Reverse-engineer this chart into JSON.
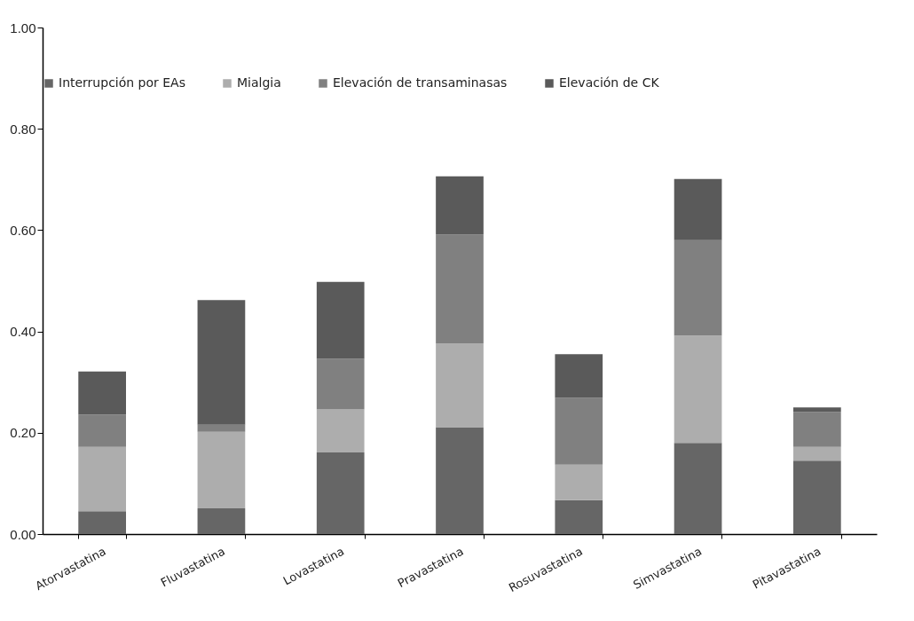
{
  "chart_data": {
    "type": "bar",
    "stacked": true,
    "categories": [
      "Atorvastatina",
      "Fluvastatina",
      "Lovastatina",
      "Pravastatina",
      "Rosuvastatina",
      "Simvastatina",
      "Pitavastatina"
    ],
    "series": [
      {
        "name": "Interrupción por EAs",
        "color": "#666666",
        "values": [
          0.045,
          0.051,
          0.161,
          0.211,
          0.067,
          0.18,
          0.145
        ]
      },
      {
        "name": "Mialgia",
        "color": "#adadad",
        "values": [
          0.127,
          0.151,
          0.085,
          0.165,
          0.07,
          0.212,
          0.027
        ]
      },
      {
        "name": "Elevación de transaminasas",
        "color": "#808080",
        "values": [
          0.064,
          0.014,
          0.1,
          0.215,
          0.132,
          0.188,
          0.069
        ]
      },
      {
        "name": "Elevación de CK",
        "color": "#5a5a5a",
        "values": [
          0.085,
          0.246,
          0.152,
          0.115,
          0.086,
          0.121,
          0.009
        ]
      }
    ],
    "ylim": [
      0,
      1
    ],
    "yticks": [
      {
        "value": 0,
        "label": "0.00"
      },
      {
        "value": 0.2,
        "label": "0.20"
      },
      {
        "value": 0.4,
        "label": "0.40"
      },
      {
        "value": 0.6,
        "label": "0.60"
      },
      {
        "value": 0.8,
        "label": "0.80"
      },
      {
        "value": 1,
        "label": "1.00"
      }
    ],
    "grid": false,
    "legend": "top"
  }
}
